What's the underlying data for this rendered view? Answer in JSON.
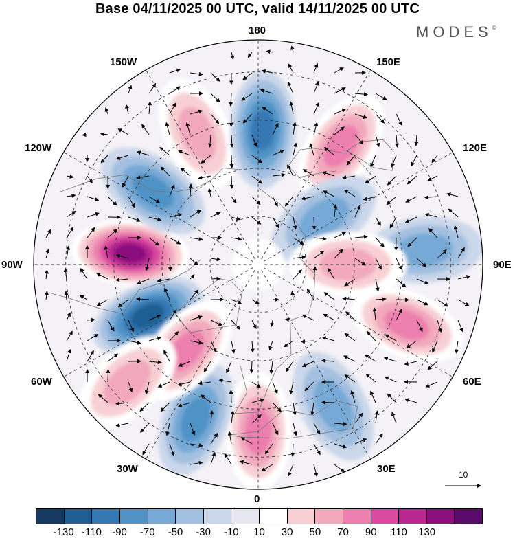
{
  "title": "Base 04/11/2025 00 UTC, valid 14/11/2025 00 UTC",
  "logo": {
    "text": "MODES",
    "mark": "©"
  },
  "longitude_labels": {
    "lon_180": "180",
    "lon_150e": "150E",
    "lon_120e": "120E",
    "lon_90e": "90E",
    "lon_60e": "60E",
    "lon_30e": "30E",
    "lon_0": "0",
    "lon_30w": "30W",
    "lon_60w": "60W",
    "lon_90w": "90W",
    "lon_120w": "120W",
    "lon_150w": "150W"
  },
  "wind_scale": {
    "value": "10",
    "icon": "arrow-right-icon"
  },
  "colorbar": {
    "ticks": [
      "-130",
      "-110",
      "-90",
      "-70",
      "-50",
      "-30",
      "-10",
      "10",
      "30",
      "50",
      "70",
      "90",
      "110",
      "130"
    ],
    "colors": [
      "#163a5e",
      "#1f5e92",
      "#3478b4",
      "#4f93c6",
      "#76a9d5",
      "#a3c0e0",
      "#cbd7ea",
      "#e6e6f0",
      "#ffffff",
      "#f8d0d4",
      "#f2a8bd",
      "#ec7fae",
      "#d94aa0",
      "#b8288f",
      "#8b0f7d",
      "#5b0b6b"
    ]
  },
  "map": {
    "projection": "north polar stereographic",
    "field": "anomaly (shaded) with wind vectors",
    "anomalies": [
      {
        "name": "anom-90w-positive",
        "lon": -95,
        "lat": 50,
        "value": 130
      },
      {
        "name": "anom-60w-negative",
        "lon": -65,
        "lat": 52,
        "value": -110
      },
      {
        "name": "anom-120w-negative",
        "lon": -125,
        "lat": 50,
        "value": -70
      },
      {
        "name": "anom-150w-positive",
        "lon": -155,
        "lat": 45,
        "value": 50
      },
      {
        "name": "anom-180-negative",
        "lon": 178,
        "lat": 48,
        "value": -90
      },
      {
        "name": "anom-150e-positive",
        "lon": 145,
        "lat": 45,
        "value": 70
      },
      {
        "name": "anom-120e-negative",
        "lon": 125,
        "lat": 65,
        "value": -50
      },
      {
        "name": "anom-90e-negative",
        "lon": 95,
        "lat": 38,
        "value": -50
      },
      {
        "name": "anom-90e-positive",
        "lon": 90,
        "lat": 62,
        "value": 50
      },
      {
        "name": "anom-60e-positive",
        "lon": 68,
        "lat": 40,
        "value": 70
      },
      {
        "name": "anom-30e-negative",
        "lon": 28,
        "lat": 40,
        "value": -50
      },
      {
        "name": "anom-0-positive",
        "lon": 0,
        "lat": 38,
        "value": 70
      },
      {
        "name": "anom-30w-negative",
        "lon": -22,
        "lat": 38,
        "value": -70
      },
      {
        "name": "anom-45w-positive",
        "lon": -40,
        "lat": 55,
        "value": 70
      },
      {
        "name": "anom-60w-south-positive",
        "lon": -48,
        "lat": 35,
        "value": 50
      }
    ]
  }
}
